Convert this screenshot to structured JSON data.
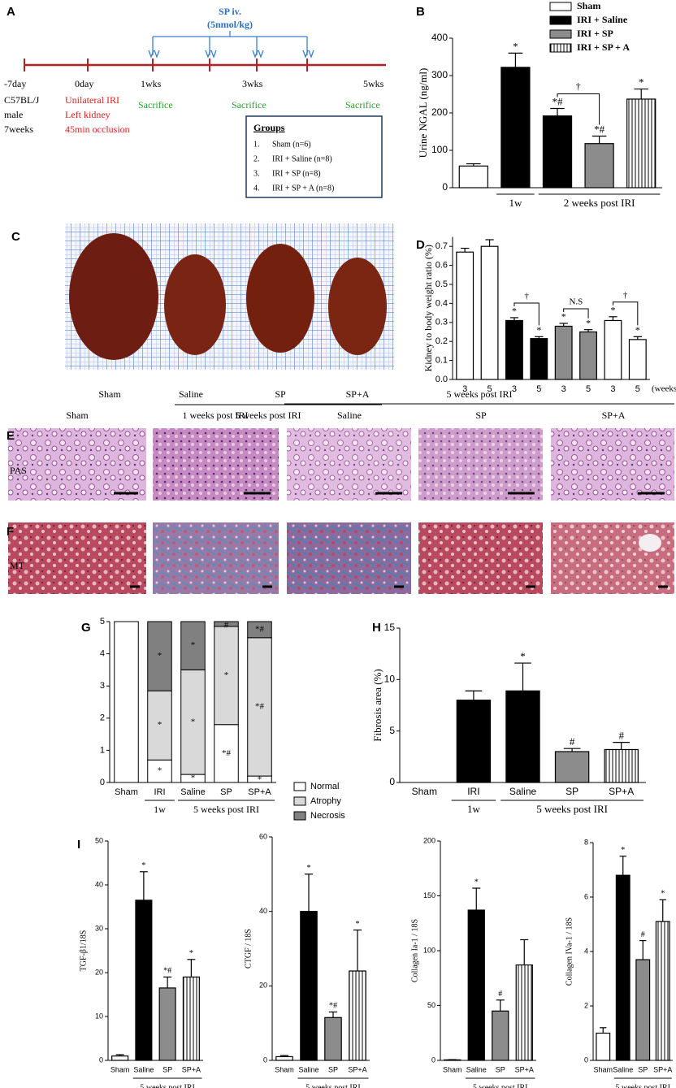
{
  "panel_labels": [
    "A",
    "B",
    "C",
    "D",
    "E",
    "F",
    "G",
    "H",
    "I"
  ],
  "timeline": {
    "treatment": [
      "SP iv.",
      "(5nmol/kg)"
    ],
    "times": [
      "-7day",
      "0day",
      "1wks",
      "3wks",
      "5wks"
    ],
    "animal": [
      "C57BL/J",
      "male",
      "7weeks"
    ],
    "surgery": [
      "Unilateral IRI",
      "Left kidney",
      "45min occlusion"
    ],
    "sacrifice": [
      "Sacrifice",
      "Sacrifice",
      "Sacrifice"
    ],
    "groups_title": "Groups",
    "groups": [
      [
        "1.",
        "Sham (n=6)"
      ],
      [
        "2.",
        "IRI + Saline (n=8)"
      ],
      [
        "3.",
        "IRI + SP (n=8)"
      ],
      [
        "4.",
        "IRI + SP + A (n=8)"
      ]
    ]
  },
  "photo": {
    "labels": [
      "Sham",
      "Saline",
      "SP",
      "SP+A"
    ],
    "group": "5 weeks post IRI"
  },
  "histology": {
    "columns": [
      "Sham",
      "1 weeks post IRI",
      "Saline",
      "SP",
      "SP+A"
    ],
    "group": "5 weeks post IRI",
    "rows": [
      "PAS",
      "MT"
    ]
  },
  "chart_data": [
    {
      "type": "bar",
      "ylabel": "Urine NGAL (ng/ml)",
      "categories": [
        null,
        null,
        null,
        null,
        null
      ],
      "values": [
        58,
        322,
        192,
        118,
        237
      ],
      "errors": [
        6,
        38,
        20,
        20,
        27
      ],
      "colors": [
        "#ffffff",
        "#000000",
        "#000000",
        "#8c8c8c",
        "#ffffff"
      ],
      "hatch": [
        false,
        false,
        false,
        false,
        true
      ],
      "annotations": [
        null,
        "*",
        "*#",
        "*#",
        "*"
      ],
      "groups": [
        {
          "label": "1w",
          "categories": [
            1
          ]
        },
        {
          "label": "2 weeks post IRI",
          "categories": [
            2,
            3,
            4
          ]
        }
      ],
      "brackets": [
        {
          "from": 2,
          "to": 3,
          "label": "†"
        }
      ],
      "legend": [
        {
          "name": "Sham",
          "color": "#ffffff",
          "hatch": false
        },
        {
          "name": "IRI + Saline",
          "color": "#000000",
          "hatch": false
        },
        {
          "name": "IRI + SP",
          "color": "#8c8c8c",
          "hatch": false
        },
        {
          "name": "IRI + SP + A",
          "color": "#ffffff",
          "hatch": true
        }
      ],
      "ylim": [
        0,
        400
      ],
      "yticks": [
        0,
        100,
        200,
        300,
        400
      ]
    },
    {
      "type": "bar",
      "ylabel": "Kidney to body weight ratio (%)",
      "xlabel": "(weeks)",
      "categories": [
        "3",
        "5",
        "3",
        "5",
        "3",
        "5",
        "3",
        "5"
      ],
      "values": [
        0.67,
        0.7,
        0.31,
        0.215,
        0.28,
        0.25,
        0.31,
        0.21
      ],
      "errors": [
        0.02,
        0.035,
        0.015,
        0.01,
        0.015,
        0.012,
        0.02,
        0.015
      ],
      "colors": [
        "#ffffff",
        "#ffffff",
        "#000000",
        "#000000",
        "#8c8c8c",
        "#8c8c8c",
        "#ffffff",
        "#ffffff"
      ],
      "hatch": [
        false,
        false,
        false,
        false,
        false,
        false,
        false,
        false
      ],
      "annotations": [
        null,
        null,
        "*",
        "*",
        "*",
        "*",
        "*",
        "*"
      ],
      "brackets": [
        {
          "from": 2,
          "to": 3,
          "label": "†"
        },
        {
          "from": 4,
          "to": 5,
          "label": "N.S"
        },
        {
          "from": 6,
          "to": 7,
          "label": "†"
        }
      ],
      "ylim": [
        0,
        0.75
      ],
      "yticks": [
        {
          "value": 0,
          "label": "0.0"
        },
        0.1,
        0.2,
        0.3,
        0.4,
        0.5,
        0.6,
        0.7
      ]
    },
    {
      "type": "stacked",
      "categories": [
        "Sham",
        "IRI",
        "Saline",
        "SP",
        "SP+A"
      ],
      "series": [
        {
          "name": "Normal",
          "color": "#ffffff",
          "values": [
            5,
            0.7,
            0.25,
            1.8,
            0.2
          ],
          "annotations": [
            null,
            "*",
            "*",
            "*#",
            "*"
          ]
        },
        {
          "name": "Atrophy",
          "color": "#d9d9d9",
          "values": [
            0,
            2.15,
            3.25,
            3.05,
            4.3
          ],
          "annotations": [
            null,
            "*",
            "*",
            "*",
            "*#"
          ]
        },
        {
          "name": "Necrosis",
          "color": "#808080",
          "values": [
            0,
            2.15,
            1.5,
            0.15,
            0.5
          ],
          "annotations": [
            null,
            "*",
            "*",
            "#",
            "*#"
          ]
        }
      ],
      "groups": [
        {
          "label": "1w",
          "categories": [
            1
          ]
        },
        {
          "label": "5 weeks post IRI",
          "categories": [
            2,
            3,
            4
          ]
        }
      ],
      "ylim": [
        0,
        5
      ],
      "yticks": [
        0,
        1,
        2,
        3,
        4,
        5
      ]
    },
    {
      "type": "bar",
      "ylabel": "Fibrosis area (%)",
      "categories": [
        "Sham",
        "IRI",
        "Saline",
        "SP",
        "SP+A"
      ],
      "values": [
        0,
        8.0,
        8.9,
        3.0,
        3.2
      ],
      "errors": [
        0,
        0.9,
        2.7,
        0.3,
        0.7
      ],
      "colors": [
        "#ffffff",
        "#000000",
        "#000000",
        "#8c8c8c",
        "#ffffff"
      ],
      "hatch": [
        false,
        false,
        false,
        false,
        true
      ],
      "annotations": [
        null,
        null,
        "*",
        "#",
        "#"
      ],
      "groups": [
        {
          "label": "1w",
          "categories": [
            1
          ]
        },
        {
          "label": "5 weeks post IRI",
          "categories": [
            2,
            3,
            4
          ]
        }
      ],
      "ylim": [
        0,
        15
      ],
      "yticks": [
        0,
        5,
        10,
        15
      ]
    },
    {
      "type": "bar",
      "ylabel": "TGF-β1/18S",
      "categories": [
        "Sham",
        "Saline",
        "SP",
        "SP+A"
      ],
      "values": [
        1,
        36.5,
        16.5,
        19
      ],
      "errors": [
        0.3,
        6.5,
        2.5,
        4
      ],
      "colors": [
        "#ffffff",
        "#000000",
        "#8c8c8c",
        "#ffffff"
      ],
      "hatch": [
        false,
        false,
        false,
        true
      ],
      "annotations": [
        null,
        "*",
        "*#",
        "*"
      ],
      "groups": [
        {
          "label": "5 weeks post IRI",
          "categories": [
            1,
            2,
            3
          ]
        }
      ],
      "ylim": [
        0,
        50
      ],
      "yticks": [
        0,
        10,
        20,
        30,
        40,
        50
      ]
    },
    {
      "type": "bar",
      "ylabel": "CTGF / 18S",
      "categories": [
        "Sham",
        "Saline",
        "SP",
        "SP+A"
      ],
      "values": [
        1,
        40,
        11.5,
        24
      ],
      "errors": [
        0.3,
        10,
        1.5,
        11
      ],
      "colors": [
        "#ffffff",
        "#000000",
        "#8c8c8c",
        "#ffffff"
      ],
      "hatch": [
        false,
        false,
        false,
        true
      ],
      "annotations": [
        null,
        "*",
        "*#",
        "*"
      ],
      "groups": [
        {
          "label": "5 weeks post IRI",
          "categories": [
            1,
            2,
            3
          ]
        }
      ],
      "ylim": [
        0,
        60
      ],
      "yticks": [
        0,
        20,
        40,
        60
      ]
    },
    {
      "type": "bar",
      "ylabel": "Collagen Ia-1 / 18S",
      "categories": [
        "Sham",
        "Saline",
        "SP",
        "SP+A"
      ],
      "values": [
        0.5,
        137,
        45,
        87
      ],
      "errors": [
        0.2,
        20,
        10,
        23
      ],
      "colors": [
        "#ffffff",
        "#000000",
        "#8c8c8c",
        "#ffffff"
      ],
      "hatch": [
        false,
        false,
        false,
        true
      ],
      "annotations": [
        null,
        "*",
        "#",
        null
      ],
      "groups": [
        {
          "label": "5 weeks post IRI",
          "categories": [
            1,
            2,
            3
          ]
        }
      ],
      "ylim": [
        0,
        200
      ],
      "yticks": [
        0,
        50,
        100,
        150,
        200
      ]
    },
    {
      "type": "bar",
      "ylabel": "Collagen IVa-1 / 18S",
      "categories": [
        "Sham",
        "Saline",
        "SP",
        "SP+A"
      ],
      "values": [
        1.0,
        6.8,
        3.7,
        5.1
      ],
      "errors": [
        0.2,
        0.7,
        0.7,
        0.8
      ],
      "colors": [
        "#ffffff",
        "#000000",
        "#8c8c8c",
        "#ffffff"
      ],
      "hatch": [
        false,
        false,
        false,
        true
      ],
      "annotations": [
        null,
        "*",
        "#",
        "*"
      ],
      "groups": [
        {
          "label": "5 weeks post IRI",
          "categories": [
            1,
            2,
            3
          ]
        }
      ],
      "ylim": [
        0,
        8
      ],
      "yticks": [
        0,
        2,
        4,
        6,
        8
      ]
    }
  ]
}
